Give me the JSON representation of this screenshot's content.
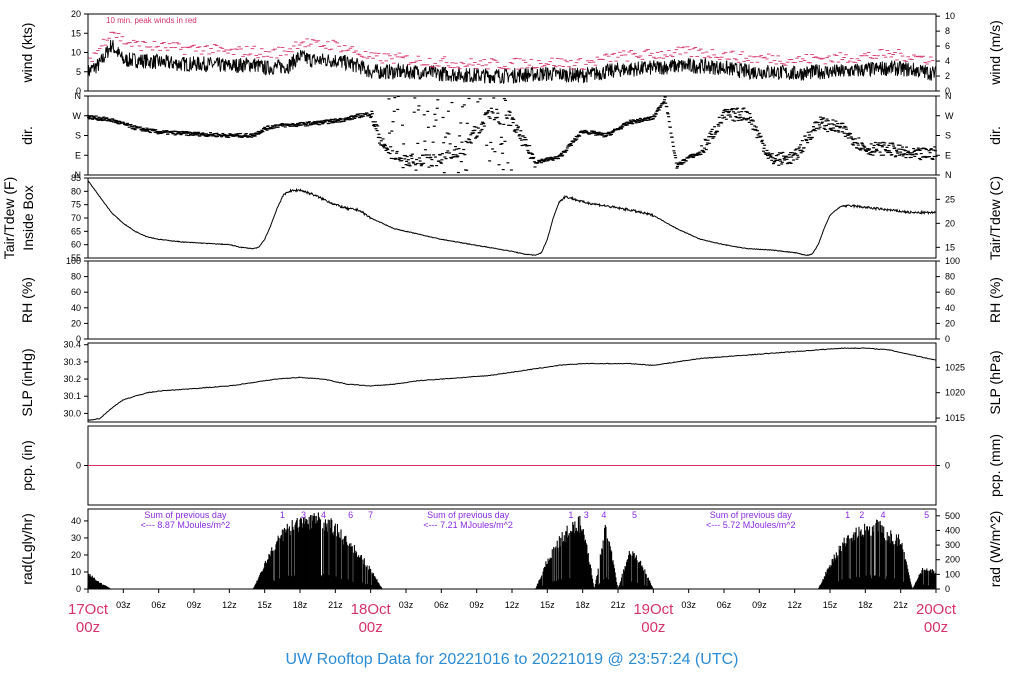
{
  "title": "UW Rooftop Data for 20221016  to  20221019 @ 23:57:24  (UTC)",
  "colors": {
    "date_labels": "#d6336c",
    "peak_wind": "#d6336c",
    "precip_line": "#d6336c",
    "rad_notes": "#8a2be2",
    "title": "#2b8bd6",
    "data": "#000000"
  },
  "time_axis": {
    "range_hours": [
      0,
      72
    ],
    "tick_step_hours": 3,
    "hour_labels": [
      "03z",
      "06z",
      "09z",
      "12z",
      "15z",
      "18z",
      "21z"
    ],
    "day_markers": [
      {
        "hour": 0,
        "date": "17Oct",
        "time": "00z"
      },
      {
        "hour": 24,
        "date": "18Oct",
        "time": "00z"
      },
      {
        "hour": 48,
        "date": "19Oct",
        "time": "00z"
      },
      {
        "hour": 72,
        "date": "20Oct",
        "time": "00z"
      }
    ]
  },
  "chart_data": [
    {
      "id": "wind",
      "type": "line",
      "ylabel_left": "wind (kts)",
      "ylabel_right": "wind (m/s)",
      "ylim_left": [
        0,
        20
      ],
      "ylim_right_mps": [
        0,
        10.29
      ],
      "left_ticks": [
        "0",
        "5",
        "10",
        "15",
        "20"
      ],
      "right_ticks": [
        "0",
        "2",
        "4",
        "6",
        "8",
        "10"
      ],
      "annotation": "10 min. peak winds in red",
      "series": [
        {
          "name": "",
          "x_hours": [
            0,
            1,
            2,
            3,
            4,
            6,
            8,
            10,
            12,
            14,
            15,
            17,
            18,
            19,
            21,
            23,
            24,
            26,
            28,
            30,
            33,
            36,
            39,
            42,
            45,
            48,
            50,
            52,
            54,
            56,
            58,
            60,
            62,
            64,
            66,
            68,
            70,
            72
          ],
          "values": [
            5,
            7,
            12,
            8,
            8,
            7.5,
            7,
            7,
            6.5,
            7,
            6,
            6.5,
            9,
            8,
            8,
            6.5,
            5,
            5,
            5,
            4.5,
            4,
            4,
            4.5,
            4,
            5.5,
            6,
            6.5,
            6.5,
            6,
            5,
            5,
            4.5,
            5,
            5,
            5.5,
            6,
            5.5,
            4.5
          ]
        },
        {
          "name": "",
          "x_hours": [
            0,
            1,
            2,
            3,
            4,
            6,
            8,
            10,
            12,
            14,
            15,
            17,
            18,
            19,
            21,
            23,
            24,
            26,
            28,
            30,
            33,
            36,
            39,
            42,
            45,
            48,
            50,
            52,
            54,
            56,
            58,
            60,
            62,
            64,
            66,
            68,
            70,
            72
          ],
          "values": [
            8,
            11,
            16,
            13,
            12,
            11.5,
            11,
            11,
            10,
            10.5,
            9.5,
            10.5,
            13,
            12,
            12,
            10,
            8.5,
            8.5,
            8,
            7.5,
            7,
            7,
            7.5,
            7,
            9,
            9.5,
            10,
            10,
            9.5,
            8.5,
            8.5,
            8,
            8.5,
            8.5,
            9,
            9.5,
            9,
            8
          ]
        }
      ]
    },
    {
      "id": "direction",
      "type": "scatter",
      "ylabel_left": "dir.",
      "ylabel_right": "dir.",
      "ylim_deg": [
        0,
        360
      ],
      "left_ticks": [
        "N",
        "E",
        "S",
        "W",
        "N"
      ],
      "right_ticks": [
        "N",
        "E",
        "S",
        "W",
        "N"
      ],
      "x_hours": [
        0,
        2,
        4,
        6,
        8,
        10,
        12,
        14,
        15,
        16,
        18,
        20,
        22,
        23,
        24,
        25,
        26,
        28,
        30,
        32,
        34,
        36,
        38,
        40,
        42,
        44,
        46,
        47,
        48,
        49,
        50,
        51,
        52,
        54,
        56,
        58,
        60,
        62,
        64,
        66,
        68,
        70,
        72
      ],
      "values_deg": [
        265,
        250,
        215,
        195,
        190,
        185,
        180,
        180,
        210,
        225,
        230,
        240,
        255,
        270,
        280,
        140,
        90,
        60,
        70,
        120,
        280,
        240,
        60,
        80,
        200,
        180,
        240,
        250,
        260,
        350,
        40,
        80,
        100,
        270,
        280,
        70,
        80,
        240,
        210,
        120,
        120,
        90,
        100
      ]
    },
    {
      "id": "temperature",
      "type": "line",
      "ylabel_left_lines": [
        "Tair/Tdew (F)",
        "Inside Box"
      ],
      "ylabel_right": "Tair/Tdew (C)",
      "ylim_left": [
        55,
        85
      ],
      "left_ticks": [
        "55",
        "60",
        "65",
        "70",
        "75",
        "80",
        "85"
      ],
      "right_ticks": [
        "15",
        "20",
        "25"
      ],
      "series": [
        {
          "name": "",
          "x_hours": [
            0,
            1,
            2,
            3,
            4,
            5,
            6,
            8,
            10,
            12,
            13,
            14,
            14.5,
            15,
            15.5,
            16,
            16.5,
            17,
            18,
            19,
            20,
            21,
            22,
            23,
            24,
            26,
            28,
            30,
            32,
            34,
            36,
            37,
            38,
            38.5,
            39,
            39.5,
            40,
            40.5,
            41,
            42,
            44,
            46,
            48,
            50,
            52,
            54,
            56,
            58,
            60,
            61,
            61.5,
            62,
            62.5,
            63,
            63.5,
            64,
            65,
            66,
            68,
            70,
            72
          ],
          "values": [
            84,
            78,
            72,
            68,
            65,
            63,
            62,
            61,
            60.5,
            60,
            59,
            58.5,
            59,
            62,
            67,
            73,
            78,
            80,
            80.5,
            79,
            77,
            75,
            73.5,
            73,
            70,
            66,
            64,
            62,
            60.5,
            59,
            57.5,
            56.5,
            56,
            57,
            62,
            70,
            76,
            78,
            77.5,
            76,
            74.5,
            73,
            71,
            66,
            62,
            60,
            58.5,
            58,
            57,
            56,
            56.5,
            60,
            66,
            71,
            73,
            74.5,
            74.5,
            74,
            73,
            72,
            72
          ]
        }
      ]
    },
    {
      "id": "rh",
      "type": "line",
      "ylabel_left": "RH (%)",
      "ylabel_right": "RH (%)",
      "ylim_left": [
        0,
        100
      ],
      "left_ticks": [
        "0",
        "20",
        "40",
        "60",
        "80",
        "100"
      ],
      "right_ticks": [
        "0",
        "20",
        "40",
        "60",
        "80",
        "100"
      ],
      "series": []
    },
    {
      "id": "slp",
      "type": "line",
      "ylabel_left": "SLP (inHg)",
      "ylabel_right": "SLP (hPa)",
      "ylim_left": [
        29.95,
        30.41
      ],
      "left_ticks": [
        "30.0",
        "30.1",
        "30.2",
        "30.3",
        "30.4"
      ],
      "right_ticks": [
        "1015",
        "1020",
        "1025"
      ],
      "series": [
        {
          "name": "",
          "x_hours": [
            0,
            1,
            2,
            3,
            4,
            5,
            6,
            8,
            10,
            12,
            14,
            16,
            18,
            20,
            22,
            24,
            26,
            28,
            30,
            32,
            34,
            36,
            38,
            40,
            42,
            44,
            46,
            48,
            50,
            52,
            54,
            56,
            58,
            60,
            62,
            64,
            66,
            68,
            70,
            72
          ],
          "values": [
            29.96,
            29.97,
            30.03,
            30.08,
            30.1,
            30.12,
            30.13,
            30.14,
            30.15,
            30.16,
            30.18,
            30.2,
            30.21,
            30.2,
            30.17,
            30.16,
            30.17,
            30.19,
            30.2,
            30.21,
            30.22,
            30.24,
            30.26,
            30.28,
            30.29,
            30.29,
            30.29,
            30.28,
            30.3,
            30.32,
            30.33,
            30.34,
            30.35,
            30.36,
            30.37,
            30.38,
            30.38,
            30.37,
            30.34,
            30.31
          ]
        }
      ]
    },
    {
      "id": "precip",
      "type": "line",
      "ylabel_left": "pcp. (in)",
      "ylabel_right": "pcp. (mm)",
      "ylim_left": [
        -1,
        1
      ],
      "left_ticks": [
        "0"
      ],
      "right_ticks": [
        "0"
      ],
      "series": [
        {
          "name": "",
          "x_hours": [
            0,
            72
          ],
          "values": [
            0,
            0
          ]
        }
      ]
    },
    {
      "id": "radiation",
      "type": "area",
      "ylabel_left": "rad(Lgly/hr)",
      "ylabel_right": "rad (W/m^2)",
      "ylim_left": [
        0,
        47
      ],
      "left_ticks": [
        "0",
        "10",
        "20",
        "30",
        "40"
      ],
      "right_ticks": [
        "0",
        "100",
        "200",
        "300",
        "400",
        "500"
      ],
      "series": [
        {
          "name": "",
          "x_hours": [
            0,
            1,
            2,
            14,
            15,
            16,
            17,
            18,
            19,
            20,
            21,
            22,
            23,
            24,
            25,
            38,
            39,
            40,
            41,
            42,
            43,
            44,
            45,
            46,
            47,
            48,
            49,
            62,
            63,
            64,
            65,
            66,
            67,
            68,
            69,
            70,
            71,
            72
          ],
          "values": [
            10,
            4,
            0,
            0,
            15,
            30,
            38,
            42,
            44,
            43,
            38,
            30,
            22,
            12,
            0,
            0,
            18,
            30,
            38,
            42,
            0,
            40,
            0,
            24,
            16,
            0,
            0,
            0,
            15,
            28,
            35,
            38,
            40,
            34,
            30,
            0,
            14,
            10
          ]
        }
      ],
      "annotations": [
        {
          "line1": "Sum of previous day",
          "line2": "<--- 8.87 MJoules/m^2",
          "hour": 7
        },
        {
          "line1": "Sum of previous day",
          "line2": "<--- 7.21 MJoules/m^2",
          "hour": 31
        },
        {
          "line1": "Sum of previous day",
          "line2": "<--- 5.72 MJoules/m^2",
          "hour": 55
        }
      ],
      "markers": [
        {
          "hour": 16.5,
          "label": "1"
        },
        {
          "hour": 18.3,
          "label": "3"
        },
        {
          "hour": 20.0,
          "label": "4"
        },
        {
          "hour": 22.3,
          "label": "6"
        },
        {
          "hour": 24.0,
          "label": "7"
        },
        {
          "hour": 41.0,
          "label": "1"
        },
        {
          "hour": 42.3,
          "label": "3"
        },
        {
          "hour": 43.8,
          "label": "4"
        },
        {
          "hour": 46.4,
          "label": "5"
        },
        {
          "hour": 64.5,
          "label": "1"
        },
        {
          "hour": 65.7,
          "label": "2"
        },
        {
          "hour": 67.5,
          "label": "4"
        },
        {
          "hour": 71.2,
          "label": "5"
        }
      ]
    }
  ]
}
